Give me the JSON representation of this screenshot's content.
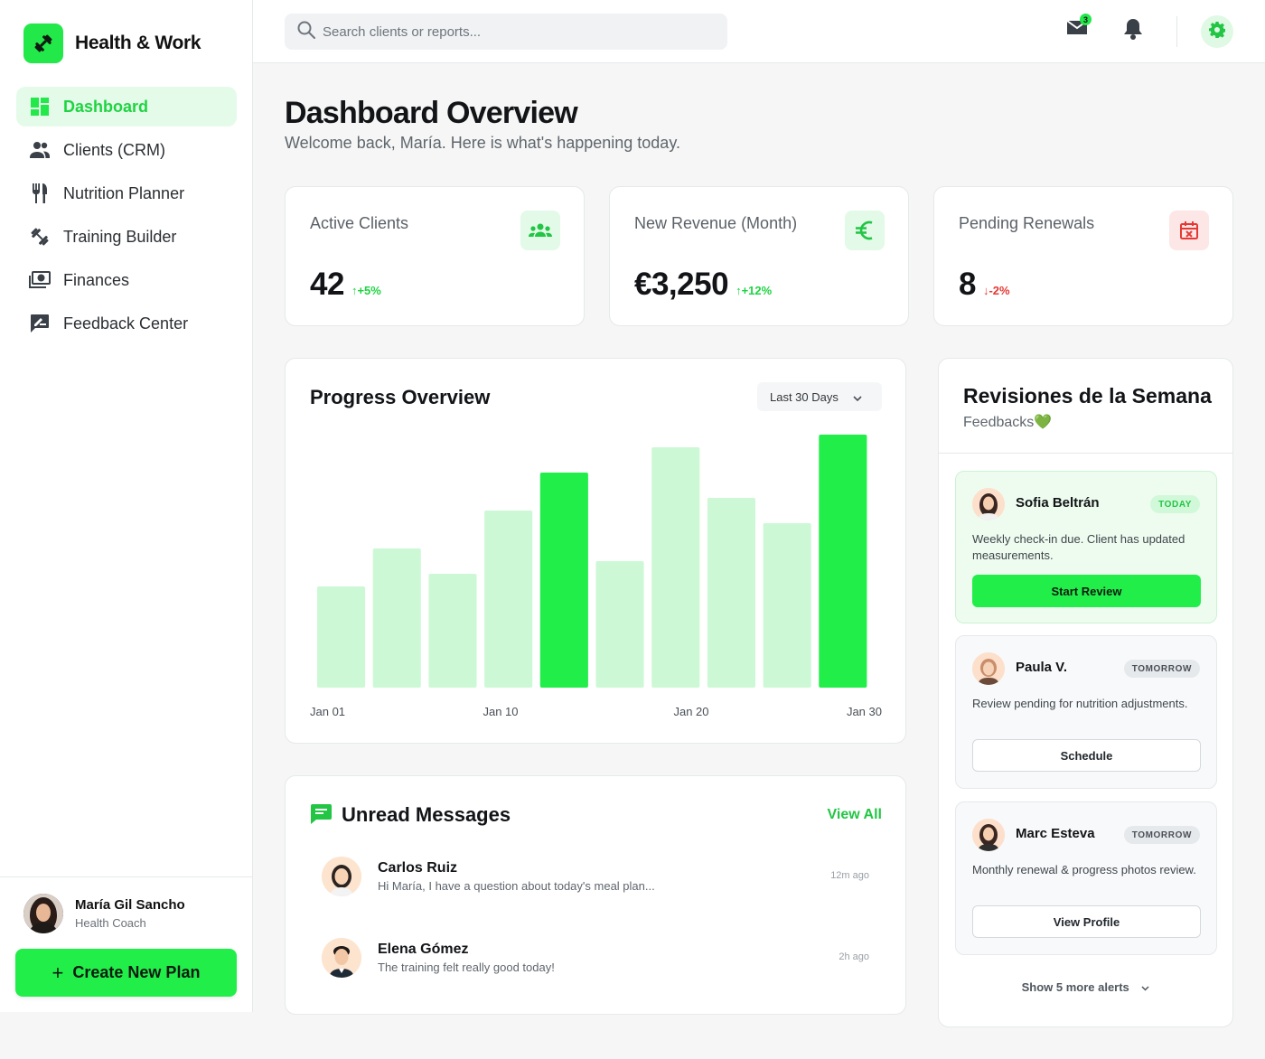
{
  "sidebar": {
    "brand": "Health & Work",
    "items": [
      {
        "label": "Dashboard",
        "icon": "dashboard-icon",
        "active": true
      },
      {
        "label": "Clients (CRM)",
        "icon": "users-icon"
      },
      {
        "label": "Nutrition Planner",
        "icon": "fork-knife-icon"
      },
      {
        "label": "Training Builder",
        "icon": "dumbbell-icon"
      },
      {
        "label": "Finances",
        "icon": "money-icon"
      },
      {
        "label": "Feedback Center",
        "icon": "feedback-icon"
      }
    ],
    "profile": {
      "name": "María Gil Sancho",
      "role": "Health Coach"
    },
    "create_label": "Create New Plan"
  },
  "header": {
    "search_placeholder": "Search clients or reports...",
    "mail_count": "3"
  },
  "page": {
    "title": "Dashboard Overview",
    "subtitle": "Welcome back, María. Here is what's happening today."
  },
  "stats": [
    {
      "label": "Active Clients",
      "value": "42",
      "change": "+5%",
      "trend": "up",
      "icon": "group-icon"
    },
    {
      "label": "New Revenue (Month)",
      "value": "€3,250",
      "change": "+12%",
      "trend": "up",
      "icon": "euro-icon"
    },
    {
      "label": "Pending Renewals",
      "value": "8",
      "change": "-2%",
      "trend": "down",
      "icon": "calendar-x-icon"
    }
  ],
  "progress": {
    "title": "Progress Overview",
    "range": "Last 30 Days"
  },
  "chart_data": {
    "type": "bar",
    "title": "Progress Overview",
    "tick_labels": [
      "Jan 01",
      "Jan 10",
      "Jan 20",
      "Jan 30"
    ],
    "values": [
      40,
      55,
      45,
      70,
      85,
      50,
      95,
      75,
      65,
      100
    ],
    "highlighted": [
      false,
      false,
      false,
      false,
      true,
      false,
      false,
      false,
      false,
      true
    ],
    "colors": {
      "normal": "#cdf8d6",
      "highlight": "#22ee4a"
    },
    "grid": false
  },
  "messages": {
    "title": "Unread Messages",
    "view_all": "View All",
    "items": [
      {
        "name": "Carlos Ruiz",
        "text": "Hi María, I have a question about today's meal plan...",
        "time": "12m ago"
      },
      {
        "name": "Elena Gómez",
        "text": "The training felt really good today!",
        "time": "2h ago"
      }
    ]
  },
  "reviews": {
    "title": "Revisiones de la Semana",
    "subtitle": "Feedbacks💚",
    "items": [
      {
        "name": "Sofia Beltrán",
        "badge": "TODAY",
        "text": "Weekly check-in due. Client has updated measurements.",
        "button": "Start Review"
      },
      {
        "name": "Paula V.",
        "badge": "TOMORROW",
        "text": "Review pending for nutrition adjustments.",
        "button": "Schedule"
      },
      {
        "name": "Marc Esteva",
        "badge": "TOMORROW",
        "text": "Monthly renewal & progress photos review.",
        "button": "View Profile"
      }
    ],
    "more": "Show 5 more alerts"
  }
}
